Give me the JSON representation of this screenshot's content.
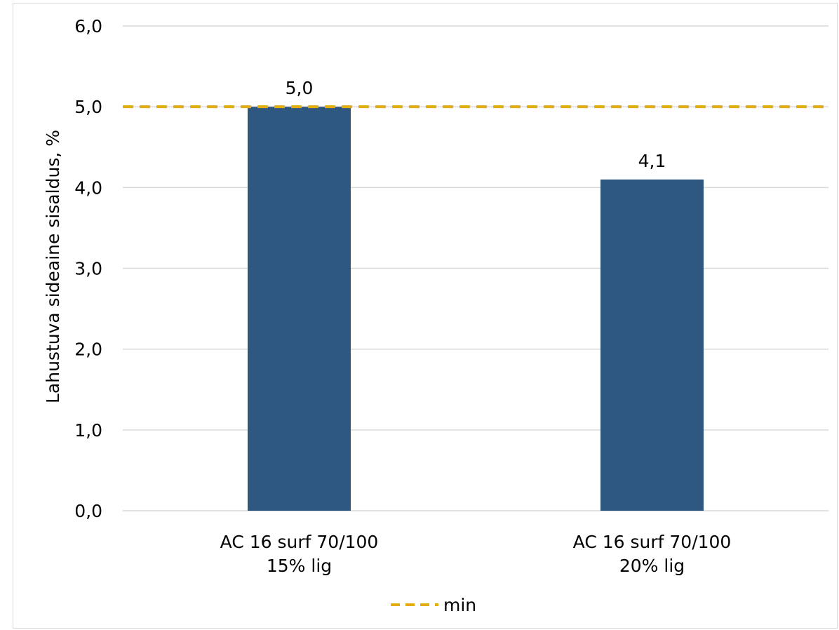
{
  "chart_data": {
    "type": "bar",
    "categories": [
      [
        "AC 16 surf 70/100",
        "15% lig"
      ],
      [
        "AC 16 surf 70/100",
        "20% lig"
      ]
    ],
    "series": [
      {
        "values": [
          5.0,
          4.1
        ],
        "color": "#2e587f"
      }
    ],
    "data_labels": [
      "5,0",
      "4,1"
    ],
    "reference_line": {
      "name": "min",
      "value": 5.0,
      "color": "#e3ac0f",
      "style": "dashed"
    },
    "title": "",
    "xlabel": "",
    "ylabel": "Lahustuva sideaine sisaldus, %",
    "ylim": [
      0,
      6
    ],
    "yticks": [
      0,
      1,
      2,
      3,
      4,
      5,
      6
    ],
    "ytick_labels": [
      "0,0",
      "1,0",
      "2,0",
      "3,0",
      "4,0",
      "5,0",
      "6,0"
    ],
    "grid": true,
    "legend": {
      "position": "bottom",
      "entries": [
        "min"
      ]
    }
  }
}
